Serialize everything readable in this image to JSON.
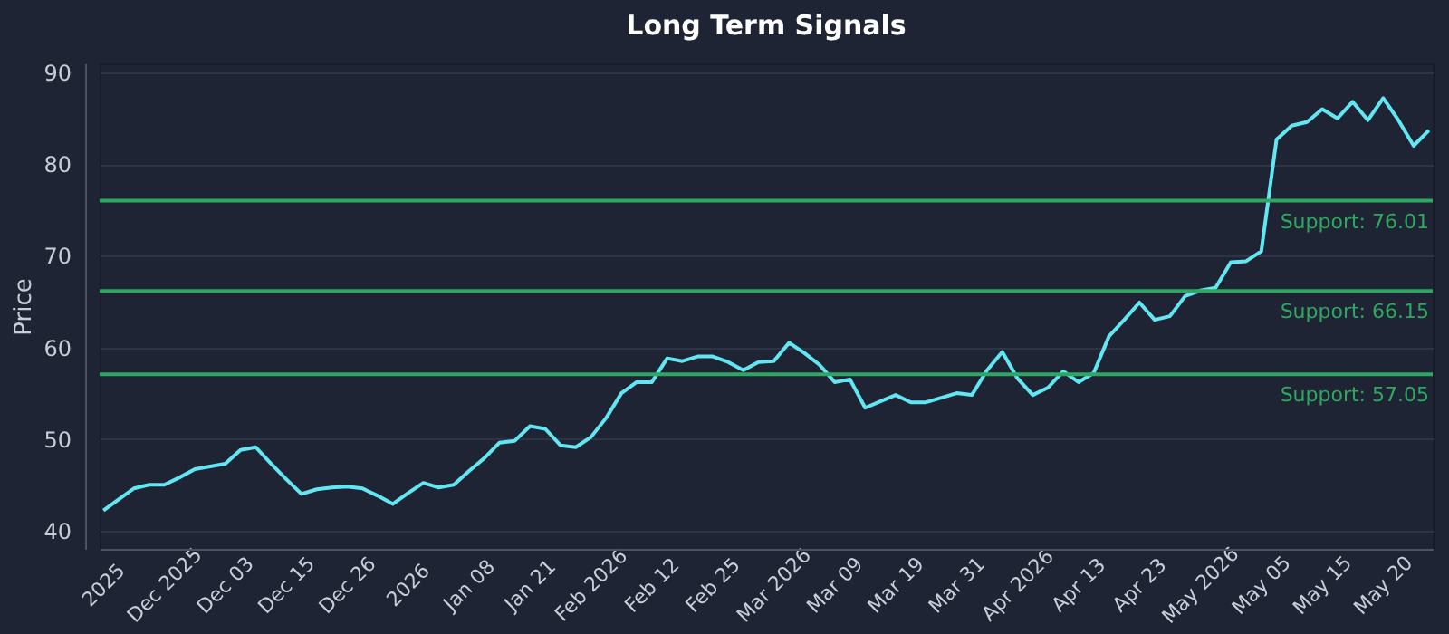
{
  "chart_data": {
    "type": "line",
    "title": "Long Term Signals",
    "ylabel": "Price",
    "categories": [
      "2025",
      null,
      null,
      null,
      "Dec 2025",
      null,
      null,
      null,
      "Dec 03",
      null,
      null,
      null,
      "Dec 15",
      null,
      null,
      null,
      "Dec 26",
      null,
      null,
      null,
      "2026",
      null,
      null,
      null,
      "Jan 08",
      null,
      null,
      null,
      "Jan 21",
      null,
      null,
      null,
      "Feb 2026",
      null,
      null,
      null,
      "Feb 12",
      null,
      null,
      null,
      "Feb 25",
      null,
      null,
      null,
      "Mar 2026",
      null,
      null,
      null,
      "Mar 09",
      null,
      null,
      null,
      "Mar 19",
      null,
      null,
      null,
      "Mar 31",
      null,
      null,
      null,
      "Apr 2026",
      null,
      null,
      null,
      "Apr 13",
      null,
      null,
      null,
      "Apr 23",
      null,
      null,
      null,
      "May 2026",
      null,
      null,
      null,
      "May 05",
      null,
      null,
      null,
      "May 15",
      null,
      null,
      null,
      "May 20",
      null,
      null,
      null
    ],
    "series": [
      {
        "color": "#62e6f2",
        "values": [
          42.2,
          43.4,
          44.6,
          45.0,
          45.0,
          45.8,
          46.7,
          47.0,
          47.3,
          48.8,
          49.1,
          47.3,
          45.6,
          44.0,
          44.5,
          44.7,
          44.8,
          44.6,
          43.8,
          42.9,
          44.1,
          45.2,
          44.7,
          45.0,
          46.5,
          47.9,
          49.6,
          49.8,
          51.4,
          51.1,
          49.3,
          49.1,
          50.2,
          52.3,
          55.0,
          56.2,
          56.2,
          58.8,
          58.5,
          59.0,
          59.0,
          58.4,
          57.5,
          58.4,
          58.5,
          60.5,
          59.4,
          58.1,
          56.2,
          56.5,
          53.4,
          54.1,
          54.8,
          54.0,
          54.0,
          54.5,
          55.0,
          54.8,
          57.5,
          59.5,
          56.6,
          54.8,
          55.6,
          57.4,
          56.2,
          57.2,
          61.2,
          63.0,
          64.9,
          63.0,
          63.4,
          65.6,
          66.2,
          66.5,
          69.3,
          69.4,
          70.5,
          82.7,
          84.2,
          84.6,
          86.0,
          85.0,
          86.8,
          84.8,
          87.2,
          84.8,
          82.0,
          83.7
        ]
      }
    ],
    "ylim": [
      38,
      91
    ],
    "yticks": [
      40,
      50,
      60,
      70,
      80,
      90
    ],
    "grid": "y",
    "ref_lines": [
      {
        "axis": "y",
        "value": 76.01,
        "label": "Support: 76.01",
        "color": "#2ea860"
      },
      {
        "axis": "y",
        "value": 66.15,
        "label": "Support: 66.15",
        "color": "#2ea860"
      },
      {
        "axis": "y",
        "value": 57.05,
        "label": "Support: 57.05",
        "color": "#2ea860"
      }
    ]
  }
}
